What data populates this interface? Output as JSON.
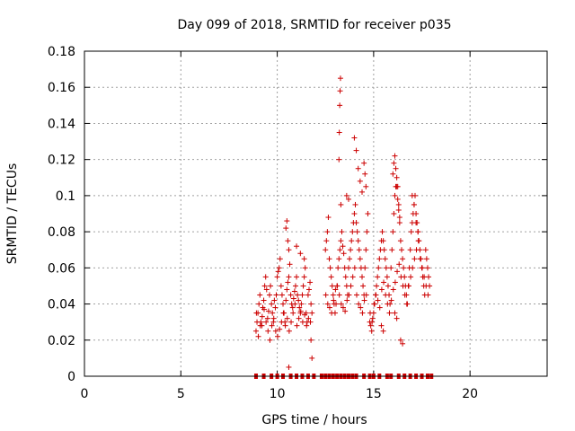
{
  "chart_data": {
    "type": "scatter",
    "title": "Day 099 of 2018, SRMTID for receiver p035",
    "xlabel": "GPS time / hours",
    "ylabel": "SRMTID / TECUs",
    "xlim": [
      0,
      24
    ],
    "ylim": [
      0,
      0.18
    ],
    "xticks": [
      0,
      5,
      10,
      15,
      20
    ],
    "xtick_labels": [
      "0",
      "5",
      "10",
      "15",
      "20"
    ],
    "yticks": [
      0,
      0.02,
      0.04,
      0.06,
      0.08,
      0.1,
      0.12,
      0.14,
      0.16,
      0.18
    ],
    "ytick_labels": [
      "0",
      "0.02",
      "0.04",
      "0.06",
      "0.08",
      "0.1",
      "0.12",
      "0.14",
      "0.16",
      "0.18"
    ],
    "grid": true,
    "marker": "plus",
    "color": "#cc0000",
    "zero_marker_times": [
      8.9,
      9.3,
      9.7,
      10.0,
      10.3,
      10.7,
      11.0,
      11.3,
      11.6,
      11.9,
      12.3,
      12.5,
      12.7,
      12.9,
      13.1,
      13.3,
      13.5,
      13.7,
      13.9,
      14.1,
      14.5,
      14.8,
      15.0,
      15.3,
      15.7,
      15.9,
      16.3,
      16.6,
      16.9,
      17.2,
      17.5,
      17.8,
      18.0
    ],
    "series": [
      {
        "name": "SRMTID",
        "x": [
          8.9,
          8.95,
          9.0,
          9.05,
          9.1,
          9.15,
          9.2,
          9.25,
          9.3,
          9.35,
          9.4,
          9.45,
          9.5,
          9.55,
          9.6,
          9.65,
          9.7,
          9.75,
          9.8,
          9.85,
          9.9,
          9.95,
          10.0,
          10.05,
          10.1,
          10.15,
          10.2,
          10.25,
          10.3,
          10.35,
          10.4,
          10.45,
          10.5,
          10.55,
          10.6,
          10.65,
          10.7,
          10.75,
          10.8,
          10.85,
          10.9,
          10.95,
          11.0,
          11.05,
          11.1,
          11.15,
          11.2,
          11.25,
          11.3,
          11.35,
          11.4,
          11.45,
          11.5,
          11.55,
          11.6,
          11.65,
          11.7,
          11.75,
          11.8,
          8.92,
          9.02,
          9.12,
          9.22,
          9.32,
          9.42,
          9.52,
          9.62,
          9.72,
          9.82,
          9.92,
          10.02,
          10.12,
          10.22,
          10.32,
          10.42,
          10.52,
          10.62,
          10.72,
          10.82,
          10.92,
          11.02,
          11.12,
          11.22,
          11.32,
          11.42,
          11.52,
          11.62,
          11.72,
          10.45,
          10.5,
          10.55,
          10.6,
          11.0,
          11.2,
          11.4,
          11.75,
          11.8,
          10.6,
          12.5,
          12.55,
          12.6,
          12.65,
          12.7,
          12.75,
          12.8,
          12.85,
          12.9,
          12.95,
          13.0,
          13.05,
          13.1,
          13.15,
          13.2,
          13.25,
          13.3,
          13.35,
          13.4,
          13.45,
          13.5,
          13.55,
          13.6,
          13.65,
          13.7,
          13.75,
          13.8,
          13.85,
          13.9,
          13.95,
          14.0,
          14.05,
          14.1,
          14.15,
          14.2,
          14.25,
          14.3,
          14.35,
          14.4,
          14.45,
          14.5,
          14.55,
          14.6,
          14.65,
          14.7,
          12.52,
          12.62,
          12.72,
          12.82,
          12.92,
          13.02,
          13.12,
          13.22,
          13.32,
          13.42,
          13.52,
          13.62,
          13.72,
          13.82,
          13.92,
          14.02,
          14.12,
          14.22,
          14.32,
          14.42,
          14.52,
          14.62,
          13.2,
          13.22,
          13.24,
          13.26,
          13.28,
          13.3,
          14.0,
          14.1,
          14.2,
          14.5,
          14.55,
          14.6,
          13.6,
          13.7,
          14.3,
          14.4,
          14.8,
          14.85,
          14.9,
          14.95,
          15.0,
          15.05,
          15.1,
          15.15,
          15.2,
          15.25,
          15.3,
          15.35,
          15.4,
          15.45,
          15.5,
          15.55,
          15.6,
          15.65,
          15.7,
          15.75,
          15.8,
          15.85,
          15.9,
          15.95,
          16.0,
          16.05,
          16.1,
          16.15,
          16.2,
          16.25,
          16.3,
          16.35,
          16.4,
          16.45,
          16.5,
          16.55,
          16.6,
          16.65,
          16.7,
          16.75,
          16.8,
          16.85,
          16.9,
          16.95,
          17.0,
          17.05,
          17.1,
          17.15,
          17.2,
          17.25,
          17.3,
          17.35,
          17.4,
          17.45,
          17.5,
          17.55,
          17.6,
          17.65,
          17.7,
          17.75,
          17.8,
          17.85,
          17.9,
          14.82,
          14.92,
          15.02,
          15.12,
          15.22,
          15.32,
          15.42,
          15.52,
          15.62,
          15.72,
          15.82,
          15.92,
          16.02,
          16.12,
          16.22,
          16.32,
          16.42,
          16.52,
          16.62,
          16.72,
          16.82,
          16.92,
          17.02,
          17.12,
          17.22,
          17.32,
          17.42,
          17.52,
          17.62,
          17.72,
          17.82,
          16.0,
          16.05,
          16.1,
          16.15,
          16.2,
          16.25,
          16.3,
          16.35,
          17.0,
          17.1,
          17.2,
          17.3,
          16.4,
          16.5,
          15.4,
          15.5,
          16.1,
          16.2
        ],
        "y": [
          0.025,
          0.03,
          0.035,
          0.04,
          0.045,
          0.03,
          0.028,
          0.038,
          0.042,
          0.05,
          0.055,
          0.048,
          0.032,
          0.036,
          0.045,
          0.05,
          0.04,
          0.035,
          0.03,
          0.042,
          0.038,
          0.045,
          0.055,
          0.058,
          0.06,
          0.065,
          0.05,
          0.045,
          0.04,
          0.035,
          0.03,
          0.042,
          0.048,
          0.052,
          0.055,
          0.062,
          0.045,
          0.04,
          0.038,
          0.043,
          0.047,
          0.05,
          0.055,
          0.045,
          0.042,
          0.038,
          0.035,
          0.04,
          0.045,
          0.05,
          0.055,
          0.06,
          0.035,
          0.03,
          0.045,
          0.048,
          0.052,
          0.04,
          0.035,
          0.035,
          0.022,
          0.028,
          0.033,
          0.037,
          0.03,
          0.025,
          0.02,
          0.028,
          0.032,
          0.025,
          0.022,
          0.026,
          0.03,
          0.035,
          0.028,
          0.032,
          0.025,
          0.03,
          0.035,
          0.04,
          0.028,
          0.032,
          0.036,
          0.03,
          0.034,
          0.028,
          0.032,
          0.03,
          0.082,
          0.086,
          0.075,
          0.07,
          0.072,
          0.068,
          0.065,
          0.02,
          0.01,
          0.005,
          0.07,
          0.075,
          0.08,
          0.088,
          0.065,
          0.06,
          0.055,
          0.05,
          0.045,
          0.04,
          0.035,
          0.04,
          0.05,
          0.06,
          0.065,
          0.07,
          0.075,
          0.08,
          0.072,
          0.068,
          0.06,
          0.055,
          0.05,
          0.045,
          0.06,
          0.065,
          0.07,
          0.075,
          0.08,
          0.085,
          0.09,
          0.095,
          0.085,
          0.08,
          0.075,
          0.07,
          0.065,
          0.06,
          0.055,
          0.05,
          0.045,
          0.06,
          0.07,
          0.08,
          0.09,
          0.045,
          0.04,
          0.038,
          0.035,
          0.042,
          0.048,
          0.05,
          0.045,
          0.04,
          0.038,
          0.036,
          0.042,
          0.045,
          0.05,
          0.055,
          0.06,
          0.045,
          0.04,
          0.038,
          0.035,
          0.042,
          0.045,
          0.12,
          0.135,
          0.15,
          0.158,
          0.165,
          0.095,
          0.132,
          0.125,
          0.115,
          0.118,
          0.112,
          0.105,
          0.1,
          0.098,
          0.108,
          0.102,
          0.03,
          0.028,
          0.025,
          0.032,
          0.035,
          0.04,
          0.045,
          0.05,
          0.055,
          0.06,
          0.065,
          0.07,
          0.075,
          0.08,
          0.075,
          0.07,
          0.065,
          0.06,
          0.055,
          0.05,
          0.045,
          0.04,
          0.06,
          0.07,
          0.08,
          0.09,
          0.1,
          0.105,
          0.11,
          0.105,
          0.095,
          0.085,
          0.075,
          0.07,
          0.065,
          0.06,
          0.055,
          0.05,
          0.045,
          0.04,
          0.05,
          0.06,
          0.07,
          0.08,
          0.085,
          0.09,
          0.095,
          0.1,
          0.09,
          0.085,
          0.08,
          0.075,
          0.07,
          0.065,
          0.06,
          0.055,
          0.05,
          0.045,
          0.07,
          0.065,
          0.06,
          0.055,
          0.05,
          0.035,
          0.03,
          0.04,
          0.045,
          0.042,
          0.038,
          0.048,
          0.052,
          0.045,
          0.04,
          0.035,
          0.042,
          0.048,
          0.052,
          0.058,
          0.062,
          0.055,
          0.05,
          0.045,
          0.04,
          0.05,
          0.055,
          0.06,
          0.065,
          0.07,
          0.075,
          0.065,
          0.06,
          0.055,
          0.05,
          0.045,
          0.112,
          0.118,
          0.122,
          0.115,
          0.105,
          0.098,
          0.092,
          0.088,
          0.1,
          0.095,
          0.085,
          0.08,
          0.02,
          0.018,
          0.028,
          0.025,
          0.035,
          0.032
        ]
      }
    ]
  }
}
